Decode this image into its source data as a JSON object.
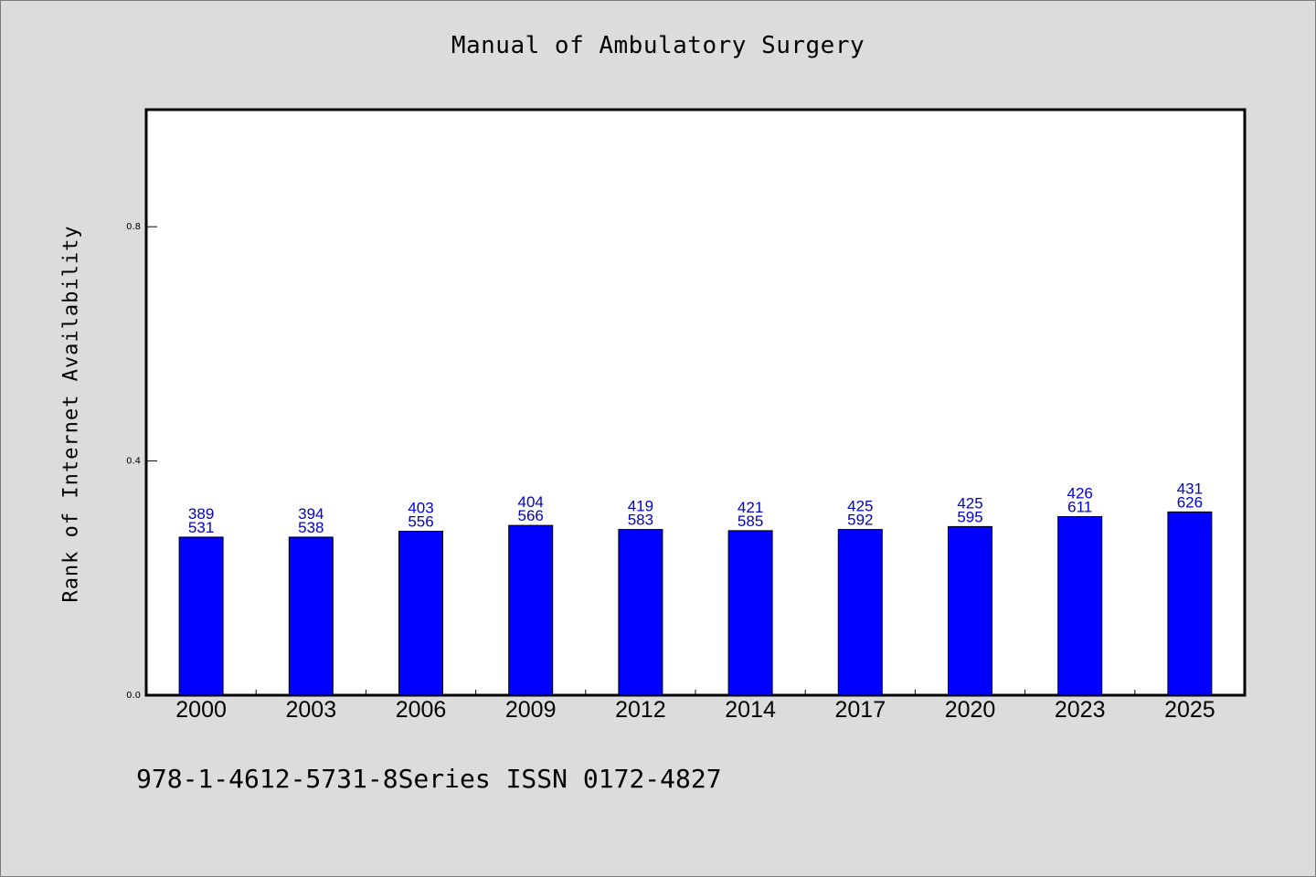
{
  "chart_data": {
    "type": "bar",
    "title": "Manual of Ambulatory Surgery",
    "xlabel": "",
    "ylabel": "Rank of Internet Availability",
    "categories": [
      "2000",
      "2003",
      "2006",
      "2009",
      "2012",
      "2014",
      "2017",
      "2020",
      "2023",
      "2025"
    ],
    "values": [
      0.27,
      0.27,
      0.28,
      0.29,
      0.283,
      0.281,
      0.283,
      0.288,
      0.305,
      0.313
    ],
    "data_labels": [
      [
        "389",
        "531"
      ],
      [
        "394",
        "538"
      ],
      [
        "403",
        "556"
      ],
      [
        "404",
        "566"
      ],
      [
        "419",
        "583"
      ],
      [
        "421",
        "585"
      ],
      [
        "425",
        "592"
      ],
      [
        "425",
        "595"
      ],
      [
        "426",
        "611"
      ],
      [
        "431",
        "626"
      ]
    ],
    "yticks": [
      "0.0",
      "0.4",
      "0.8"
    ],
    "ylim": [
      0,
      1.0
    ],
    "grid": false,
    "legend": "none",
    "colors": {
      "bar": "#0000ff",
      "data_label": "#0000cc",
      "background": "#dcdcdc",
      "plot_area": "#ffffff"
    }
  },
  "footnote": "978-1-4612-5731-8Series ISSN 0172-4827"
}
